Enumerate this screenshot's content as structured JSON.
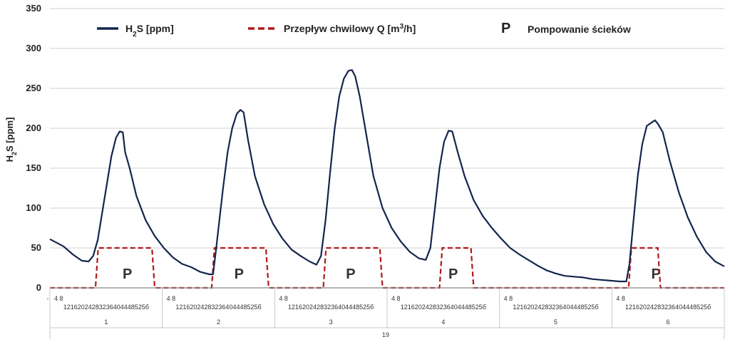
{
  "chart_data": {
    "type": "line",
    "ylabel_main": "H",
    "ylabel_sub": "2",
    "ylabel_rest": "S [ppm]",
    "ylim": [
      0,
      350
    ],
    "yticks": [
      0,
      50,
      100,
      150,
      200,
      250,
      300,
      350
    ],
    "grid": true,
    "legend_placement": "top",
    "legend": {
      "h2s_main": "H",
      "h2s_sub": "2",
      "h2s_rest": "S [ppm]",
      "flow_main": "Przepływ chwilowy Q [m",
      "flow_sup": "3",
      "flow_rest": "/h]",
      "pump_symbol": "P",
      "pump_text": "Pompowanie ścieków"
    },
    "colors": {
      "h2s": "#14254d",
      "flow": "#b01818",
      "grid": "#d0d0d0",
      "axis": "#888888"
    },
    "x_groups": [
      "1",
      "2",
      "3",
      "4",
      "5",
      "6"
    ],
    "x_outer_label": "19",
    "x_ticks_row1": "4 8",
    "x_ticks_row2": "12162024283236404448525б",
    "pump_symbol": "P",
    "h2s_series": {
      "name": "H2S [ppm]",
      "points": [
        [
          0,
          61
        ],
        [
          3,
          52
        ],
        [
          5,
          42
        ],
        [
          7,
          34
        ],
        [
          8.5,
          33
        ],
        [
          9.5,
          40
        ],
        [
          10.5,
          60
        ],
        [
          11.5,
          95
        ],
        [
          12.5,
          130
        ],
        [
          13.5,
          165
        ],
        [
          14.5,
          188
        ],
        [
          15.3,
          196
        ],
        [
          16,
          195
        ],
        [
          16.5,
          170
        ],
        [
          17.5,
          150
        ],
        [
          19,
          115
        ],
        [
          21,
          85
        ],
        [
          23,
          65
        ],
        [
          25,
          50
        ],
        [
          27,
          38
        ],
        [
          29,
          30
        ],
        [
          31,
          26
        ],
        [
          33,
          20
        ],
        [
          35,
          17
        ],
        [
          35.8,
          17
        ],
        [
          36.3,
          40
        ],
        [
          37,
          75
        ],
        [
          38,
          125
        ],
        [
          39,
          170
        ],
        [
          40,
          200
        ],
        [
          41,
          218
        ],
        [
          41.8,
          223
        ],
        [
          42.5,
          220
        ],
        [
          43.5,
          185
        ],
        [
          45,
          140
        ],
        [
          47,
          105
        ],
        [
          49,
          80
        ],
        [
          51,
          62
        ],
        [
          53,
          48
        ],
        [
          55,
          40
        ],
        [
          57,
          33
        ],
        [
          58.5,
          29
        ],
        [
          59.5,
          40
        ],
        [
          60.5,
          85
        ],
        [
          61.5,
          145
        ],
        [
          62.5,
          200
        ],
        [
          63.5,
          240
        ],
        [
          64.5,
          262
        ],
        [
          65.5,
          272
        ],
        [
          66.3,
          273
        ],
        [
          67,
          265
        ],
        [
          68,
          240
        ],
        [
          69.5,
          190
        ],
        [
          71,
          140
        ],
        [
          73,
          100
        ],
        [
          75,
          75
        ],
        [
          77,
          58
        ],
        [
          79,
          45
        ],
        [
          81,
          37
        ],
        [
          82.5,
          35
        ],
        [
          83.5,
          50
        ],
        [
          84.5,
          100
        ],
        [
          85.5,
          150
        ],
        [
          86.5,
          183
        ],
        [
          87.5,
          197
        ],
        [
          88.3,
          196
        ],
        [
          89.5,
          170
        ],
        [
          91,
          140
        ],
        [
          93,
          110
        ],
        [
          95,
          90
        ],
        [
          97,
          75
        ],
        [
          99,
          62
        ],
        [
          101,
          50
        ],
        [
          103,
          42
        ],
        [
          105,
          35
        ],
        [
          107,
          28
        ],
        [
          109,
          22
        ],
        [
          111,
          18
        ],
        [
          113,
          15
        ],
        [
          115,
          14
        ],
        [
          117,
          13
        ],
        [
          119,
          11
        ],
        [
          121,
          10
        ],
        [
          123,
          9
        ],
        [
          125,
          8
        ],
        [
          126.5,
          8
        ],
        [
          127.2,
          30
        ],
        [
          128,
          80
        ],
        [
          129,
          140
        ],
        [
          130,
          180
        ],
        [
          131,
          203
        ],
        [
          132,
          207
        ],
        [
          132.8,
          210
        ],
        [
          133.5,
          205
        ],
        [
          134.5,
          195
        ],
        [
          136,
          160
        ],
        [
          138,
          120
        ],
        [
          140,
          88
        ],
        [
          142,
          64
        ],
        [
          144,
          45
        ],
        [
          146,
          33
        ],
        [
          148,
          27
        ]
      ]
    },
    "flow_series": {
      "name": "Przepływ chwilowy Q [m3/h]",
      "value_on": 50,
      "segments": [
        [
          10,
          23
        ],
        [
          35.5,
          48
        ],
        [
          60,
          73
        ],
        [
          85.5,
          93
        ],
        [
          127,
          134
        ]
      ]
    },
    "pump_markers_x": [
      17,
      41.5,
      66,
      88.5,
      133
    ]
  }
}
